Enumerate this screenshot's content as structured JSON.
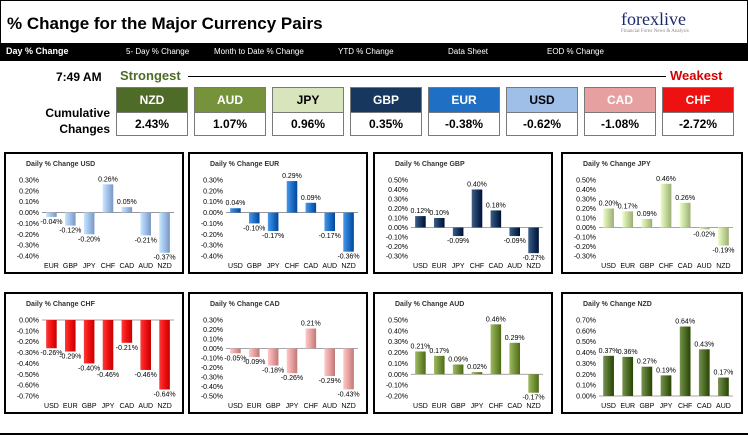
{
  "header": {
    "title": "% Change for the Major Currency Pairs",
    "logo_text": "forexlive",
    "logo_tagline": "Financial Forex News & Analysis"
  },
  "nav": {
    "tabs": [
      {
        "label": "Day % Change",
        "active": true
      },
      {
        "label": "5- Day % Change",
        "active": false
      },
      {
        "label": "Month to Date % Change",
        "active": false
      },
      {
        "label": "YTD % Change",
        "active": false
      },
      {
        "label": "Data Sheet",
        "active": false
      },
      {
        "label": "EOD % Change",
        "active": false
      }
    ]
  },
  "summary": {
    "time": "7:49 AM",
    "strongest_label": "Strongest",
    "weakest_label": "Weakest",
    "cumulative_label": "Cumulative Changes",
    "currencies": [
      {
        "name": "NZD",
        "value": "2.43%",
        "bg": "#4f6b28",
        "fg": "#ffffff"
      },
      {
        "name": "AUD",
        "value": "1.07%",
        "bg": "#76933c",
        "fg": "#ffffff"
      },
      {
        "name": "JPY",
        "value": "0.96%",
        "bg": "#d7e4bc",
        "fg": "#000000"
      },
      {
        "name": "GBP",
        "value": "0.35%",
        "bg": "#17375e",
        "fg": "#ffffff"
      },
      {
        "name": "EUR",
        "value": "-0.38%",
        "bg": "#1f6fc5",
        "fg": "#ffffff"
      },
      {
        "name": "USD",
        "value": "-0.62%",
        "bg": "#9fbfe8",
        "fg": "#000000"
      },
      {
        "name": "CAD",
        "value": "-1.08%",
        "bg": "#e6a0a0",
        "fg": "#ffffff"
      },
      {
        "name": "CHF",
        "value": "-2.72%",
        "bg": "#ee1111",
        "fg": "#ffffff"
      }
    ]
  },
  "chart_data": [
    {
      "type": "bar",
      "title": "Daily % Change USD",
      "categories": [
        "EUR",
        "GBP",
        "JPY",
        "CHF",
        "CAD",
        "AUD",
        "NZD"
      ],
      "values": [
        -0.04,
        -0.12,
        -0.2,
        0.26,
        0.05,
        -0.21,
        -0.37
      ],
      "labels": [
        "-0.04%",
        "-0.12%",
        "-0.20%",
        "0.26%",
        "0.05%",
        "-0.21%",
        "-0.37%"
      ],
      "ylim": [
        -0.4,
        0.3
      ],
      "yticks": [
        "0.30%",
        "0.20%",
        "0.10%",
        "0.00%",
        "-0.10%",
        "-0.20%",
        "-0.30%",
        "-0.40%"
      ],
      "color": "#9fbfe8"
    },
    {
      "type": "bar",
      "title": "Daily % Change EUR",
      "categories": [
        "USD",
        "GBP",
        "JPY",
        "CHF",
        "CAD",
        "AUD",
        "NZD"
      ],
      "values": [
        0.04,
        -0.1,
        -0.17,
        0.29,
        0.09,
        -0.17,
        -0.36
      ],
      "labels": [
        "0.04%",
        "-0.10%",
        "-0.17%",
        "0.29%",
        "0.09%",
        "-0.17%",
        "-0.36%"
      ],
      "ylim": [
        -0.4,
        0.3
      ],
      "yticks": [
        "0.30%",
        "0.20%",
        "0.10%",
        "0.00%",
        "-0.10%",
        "-0.20%",
        "-0.30%",
        "-0.40%"
      ],
      "color": "#1f6fc5"
    },
    {
      "type": "bar",
      "title": "Daily % Change GBP",
      "categories": [
        "USD",
        "EUR",
        "JPY",
        "CHF",
        "CAD",
        "AUD",
        "NZD"
      ],
      "values": [
        0.12,
        0.1,
        -0.09,
        0.4,
        0.18,
        -0.09,
        -0.27
      ],
      "labels": [
        "0.12%",
        "0.10%",
        "-0.09%",
        "0.40%",
        "0.18%",
        "-0.09%",
        "-0.27%"
      ],
      "ylim": [
        -0.3,
        0.5
      ],
      "yticks": [
        "0.50%",
        "0.40%",
        "0.30%",
        "0.20%",
        "0.10%",
        "0.00%",
        "-0.10%",
        "-0.20%",
        "-0.30%"
      ],
      "color": "#17375e"
    },
    {
      "type": "bar",
      "title": "Daily % Change JPY",
      "categories": [
        "USD",
        "EUR",
        "GBP",
        "CHF",
        "CAD",
        "AUD",
        "NZD"
      ],
      "values": [
        0.2,
        0.17,
        0.09,
        0.46,
        0.26,
        -0.02,
        -0.19
      ],
      "labels": [
        "0.20%",
        "0.17%",
        "0.09%",
        "0.46%",
        "0.26%",
        "-0.02%",
        "-0.19%"
      ],
      "ylim": [
        -0.3,
        0.5
      ],
      "yticks": [
        "0.50%",
        "0.40%",
        "0.30%",
        "0.20%",
        "0.10%",
        "0.00%",
        "-0.10%",
        "-0.20%",
        "-0.30%"
      ],
      "color": "#c3d69b"
    },
    {
      "type": "bar",
      "title": "Daily % Change CHF",
      "categories": [
        "USD",
        "EUR",
        "GBP",
        "JPY",
        "CAD",
        "AUD",
        "NZD"
      ],
      "values": [
        -0.26,
        -0.29,
        -0.4,
        -0.46,
        -0.21,
        -0.46,
        -0.64
      ],
      "labels": [
        "-0.26%",
        "-0.29%",
        "-0.40%",
        "-0.46%",
        "-0.21%",
        "-0.46%",
        "-0.64%"
      ],
      "ylim": [
        -0.7,
        0.0
      ],
      "yticks": [
        "0.00%",
        "-0.10%",
        "-0.20%",
        "-0.30%",
        "-0.40%",
        "-0.50%",
        "-0.60%",
        "-0.70%"
      ],
      "color": "#ee1111"
    },
    {
      "type": "bar",
      "title": "Daily % Change CAD",
      "categories": [
        "USD",
        "EUR",
        "GBP",
        "JPY",
        "CHF",
        "AUD",
        "NZD"
      ],
      "values": [
        -0.05,
        -0.09,
        -0.18,
        -0.26,
        0.21,
        -0.29,
        -0.43
      ],
      "labels": [
        "-0.05%",
        "-0.09%",
        "-0.18%",
        "-0.26%",
        "0.21%",
        "-0.29%",
        "-0.43%"
      ],
      "ylim": [
        -0.5,
        0.3
      ],
      "yticks": [
        "0.30%",
        "0.20%",
        "0.10%",
        "0.00%",
        "-0.10%",
        "-0.20%",
        "-0.30%",
        "-0.40%",
        "-0.50%"
      ],
      "color": "#e6a0a0"
    },
    {
      "type": "bar",
      "title": "Daily % Change AUD",
      "categories": [
        "USD",
        "EUR",
        "GBP",
        "JPY",
        "CHF",
        "CAD",
        "NZD"
      ],
      "values": [
        0.21,
        0.17,
        0.09,
        0.02,
        0.46,
        0.29,
        -0.17
      ],
      "labels": [
        "0.21%",
        "0.17%",
        "0.09%",
        "0.02%",
        "0.46%",
        "0.29%",
        "-0.17%"
      ],
      "ylim": [
        -0.2,
        0.5
      ],
      "yticks": [
        "0.50%",
        "0.40%",
        "0.30%",
        "0.20%",
        "0.10%",
        "0.00%",
        "-0.10%",
        "-0.20%"
      ],
      "color": "#76933c"
    },
    {
      "type": "bar",
      "title": "Daily % Change NZD",
      "categories": [
        "USD",
        "EUR",
        "GBP",
        "JPY",
        "CHF",
        "CAD",
        "AUD"
      ],
      "values": [
        0.37,
        0.36,
        0.27,
        0.19,
        0.64,
        0.43,
        0.17
      ],
      "labels": [
        "0.37%",
        "0.36%",
        "0.27%",
        "0.19%",
        "0.64%",
        "0.43%",
        "0.17%"
      ],
      "ylim": [
        0.0,
        0.7
      ],
      "yticks": [
        "0.70%",
        "0.60%",
        "0.50%",
        "0.40%",
        "0.30%",
        "0.20%",
        "0.10%",
        "0.00%"
      ],
      "color": "#4f6b28"
    }
  ]
}
